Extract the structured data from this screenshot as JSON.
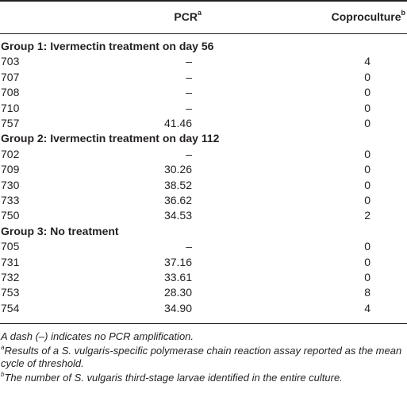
{
  "header": {
    "pcr_label": "PCR",
    "pcr_sup": "a",
    "copro_label": "Coproculture",
    "copro_sup": "b"
  },
  "groups": [
    {
      "title": "Group 1: Ivermectin treatment on day 56",
      "rows": [
        {
          "id": "703",
          "pcr": "–",
          "copro": "4"
        },
        {
          "id": "707",
          "pcr": "–",
          "copro": "0"
        },
        {
          "id": "708",
          "pcr": "–",
          "copro": "0"
        },
        {
          "id": "710",
          "pcr": "–",
          "copro": "0"
        },
        {
          "id": "757",
          "pcr": "41.46",
          "copro": "0"
        }
      ]
    },
    {
      "title": "Group 2: Ivermectin treatment on day 112",
      "rows": [
        {
          "id": "702",
          "pcr": "–",
          "copro": "0"
        },
        {
          "id": "709",
          "pcr": "30.26",
          "copro": "0"
        },
        {
          "id": "730",
          "pcr": "38.52",
          "copro": "0"
        },
        {
          "id": "733",
          "pcr": "36.62",
          "copro": "0"
        },
        {
          "id": "750",
          "pcr": "34.53",
          "copro": "2"
        }
      ]
    },
    {
      "title": "Group 3: No treatment",
      "rows": [
        {
          "id": "705",
          "pcr": "–",
          "copro": "0"
        },
        {
          "id": "731",
          "pcr": "37.16",
          "copro": "0"
        },
        {
          "id": "732",
          "pcr": "33.61",
          "copro": "0"
        },
        {
          "id": "753",
          "pcr": "28.30",
          "copro": "8"
        },
        {
          "id": "754",
          "pcr": "34.90",
          "copro": "4"
        }
      ]
    }
  ],
  "notes": {
    "dash": "A dash (–) indicates no PCR amplification.",
    "a_mark": "a",
    "a_text": "Results of a S. vulgaris-specific polymerase chain reaction assay reported as the mean cycle of threshold.",
    "b_mark": "b",
    "b_text": "The number of S. vulgaris third-stage larvae identified in the entire culture."
  }
}
